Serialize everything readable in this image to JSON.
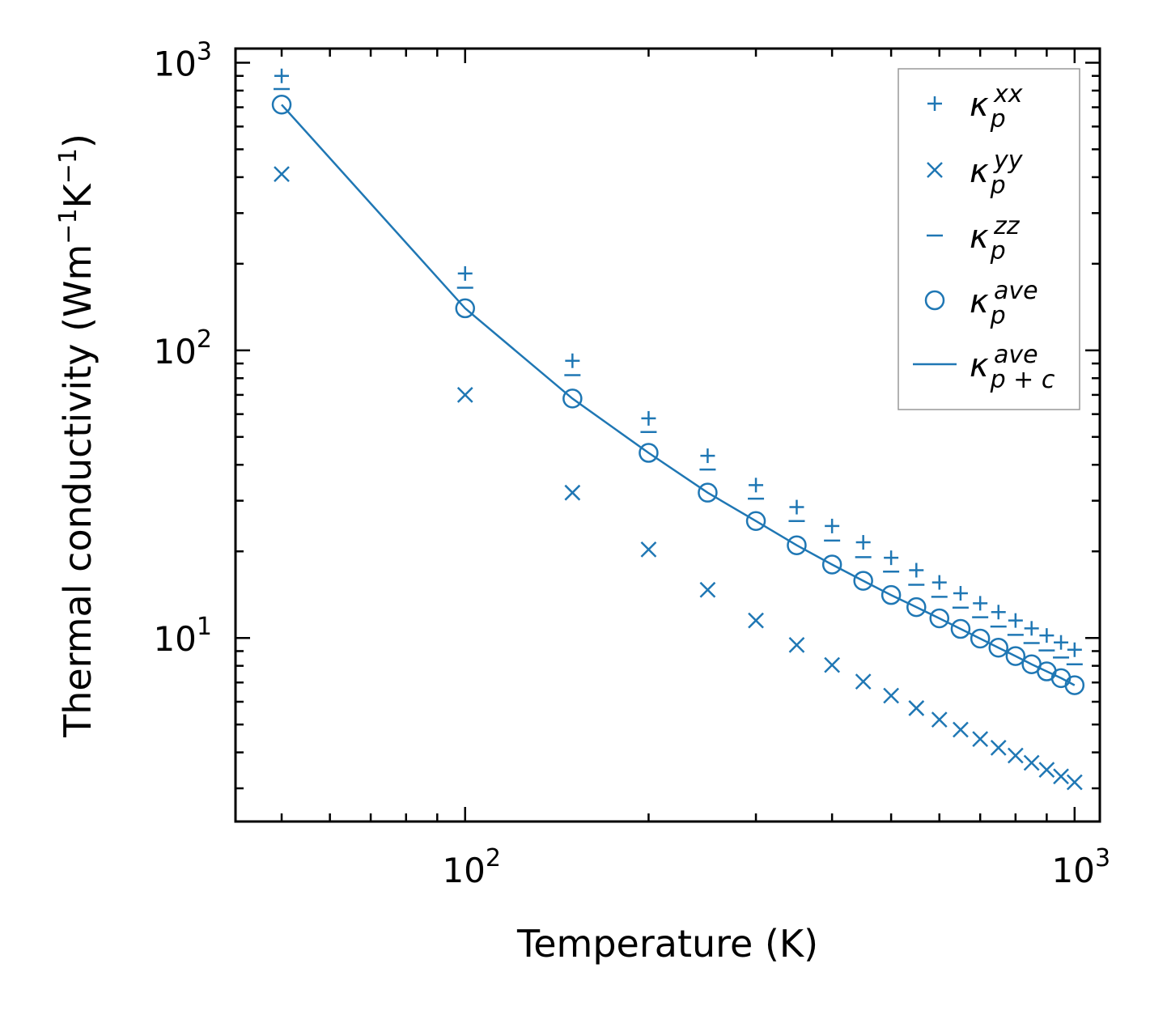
{
  "chart_data": {
    "type": "scatter",
    "xscale": "log",
    "yscale": "log",
    "xlabel": "Temperature (K)",
    "ylabel": {
      "main": "Thermal conductivity (Wm",
      "exp1": "−1",
      "mid": "K",
      "exp2": "−1",
      "close": ")"
    },
    "xlim": [
      42,
      1100
    ],
    "ylim": [
      2.3,
      1120
    ],
    "x_ticks": [
      {
        "base": "10",
        "exp": "2",
        "value": 100
      },
      {
        "base": "10",
        "exp": "3",
        "value": 1000
      }
    ],
    "y_ticks": [
      {
        "base": "10",
        "exp": "1",
        "value": 10
      },
      {
        "base": "10",
        "exp": "2",
        "value": 100
      },
      {
        "base": "10",
        "exp": "3",
        "value": 1000
      }
    ],
    "x": [
      50,
      100,
      150,
      200,
      250,
      300,
      350,
      400,
      450,
      500,
      550,
      600,
      650,
      700,
      750,
      800,
      850,
      900,
      950,
      1000
    ],
    "series": [
      {
        "name": "kappa_p_xx",
        "marker": "plus",
        "values": [
          900,
          185,
          92,
          58,
          43,
          34,
          28.5,
          24.5,
          21.5,
          19,
          17.2,
          15.6,
          14.3,
          13.2,
          12.3,
          11.5,
          10.8,
          10.2,
          9.65,
          9.1
        ]
      },
      {
        "name": "kappa_p_yy",
        "marker": "x",
        "values": [
          410,
          70,
          32,
          20.3,
          14.7,
          11.5,
          9.45,
          8.05,
          7.05,
          6.3,
          5.7,
          5.2,
          4.8,
          4.45,
          4.15,
          3.9,
          3.68,
          3.48,
          3.3,
          3.15
        ]
      },
      {
        "name": "kappa_p_zz",
        "marker": "hline",
        "values": [
          810,
          165,
          82,
          52,
          38.5,
          30.5,
          25.5,
          21.8,
          19.1,
          17,
          15.3,
          13.9,
          12.75,
          11.8,
          10.95,
          10.25,
          9.6,
          9.05,
          8.55,
          8.1
        ]
      },
      {
        "name": "kappa_p_ave",
        "marker": "circle",
        "values": [
          715,
          140,
          68,
          44,
          32,
          25.5,
          21,
          18,
          15.8,
          14.1,
          12.8,
          11.7,
          10.75,
          9.95,
          9.25,
          8.65,
          8.1,
          7.65,
          7.25,
          6.85
        ]
      },
      {
        "name": "kappa_pc_ave",
        "marker": "line",
        "values": [
          715,
          140,
          68,
          44,
          32,
          25.5,
          21,
          18,
          15.8,
          14.1,
          12.8,
          11.7,
          10.75,
          9.95,
          9.25,
          8.65,
          8.1,
          7.65,
          7.25,
          6.85
        ]
      }
    ],
    "color": "#1f77b4",
    "legend": {
      "position": "top-right",
      "entries": [
        {
          "marker": "plus",
          "base": "κ",
          "sub": "p",
          "sup": "xx"
        },
        {
          "marker": "x",
          "base": "κ",
          "sub": "p",
          "sup": "yy"
        },
        {
          "marker": "hline",
          "base": "κ",
          "sub": "p",
          "sup": "zz"
        },
        {
          "marker": "circle",
          "base": "κ",
          "sub": "p",
          "sup": "ave"
        },
        {
          "marker": "line",
          "base": "κ",
          "sub": "p + c",
          "sup": "ave"
        }
      ]
    }
  }
}
